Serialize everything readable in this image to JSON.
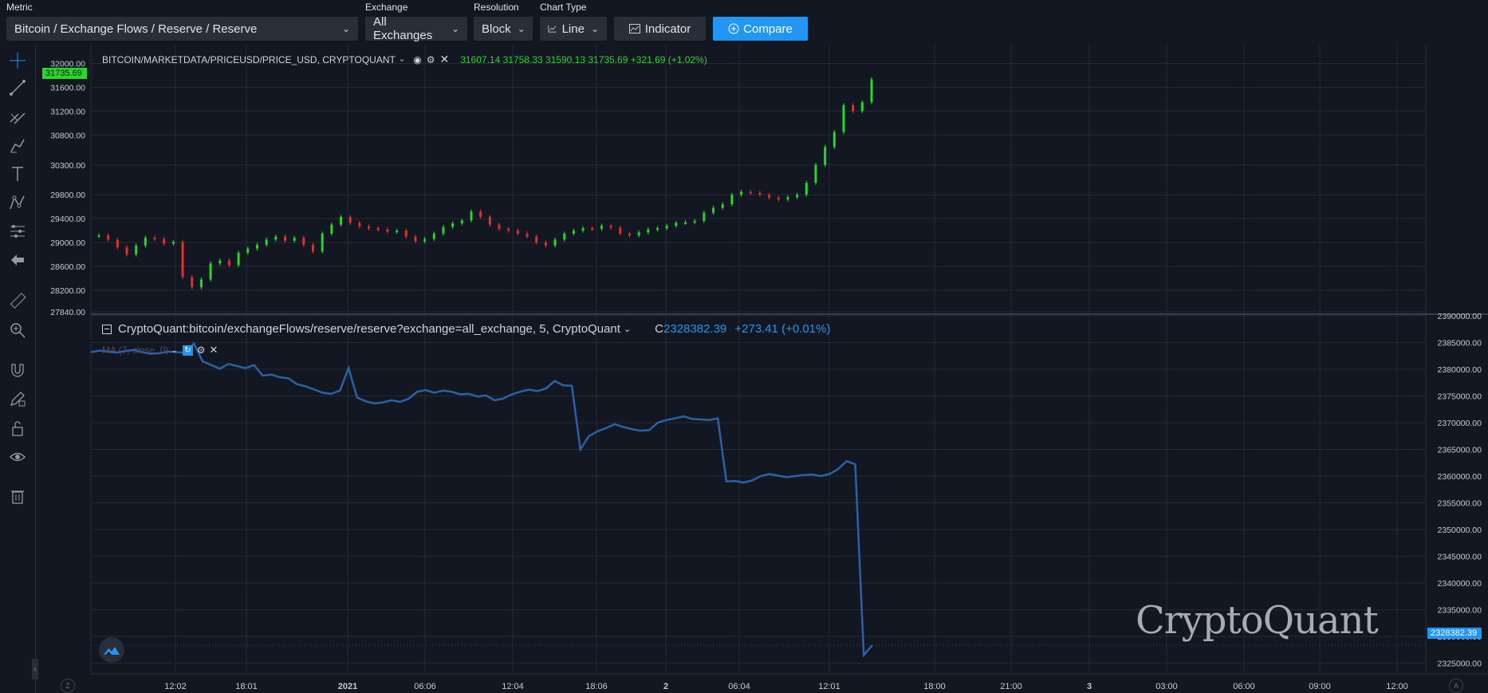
{
  "top": {
    "metric_label": "Metric",
    "metric_value": "Bitcoin / Exchange Flows / Reserve / Reserve",
    "exchange_label": "Exchange",
    "exchange_value": "All Exchanges",
    "resolution_label": "Resolution",
    "resolution_value": "Block",
    "charttype_label": "Chart Type",
    "charttype_value": "Line",
    "indicator_label": "Indicator",
    "compare_label": "Compare"
  },
  "toolbar": {
    "icons": [
      "crosshair-icon",
      "trend-line-icon",
      "fib-icon",
      "brush-icon",
      "text-icon",
      "pattern-icon",
      "measure-icon",
      "back-arrow-icon",
      "ruler-icon",
      "zoom-icon",
      "magnet-icon",
      "lock-draw-icon",
      "lock-icon",
      "eye-icon",
      "trash-icon"
    ]
  },
  "pane1": {
    "symbol": "BITCOIN/MARKETDATA/PRICEUSD/PRICE_USD, CRYPTOQUANT",
    "ohlc": "31607.14  31758.33  31590.13  31735.69  +321.69 (+1.02%)",
    "last_price": "31735.69",
    "y_ticks": [
      "32000.00",
      "31600.00",
      "31200.00",
      "30800.00",
      "30300.00",
      "29800.00",
      "29400.00",
      "29000.00",
      "28600.00",
      "28200.00",
      "27840.00"
    ]
  },
  "pane2": {
    "symbol": "CryptoQuant:bitcoin/exchangeFlows/reserve/reserve?exchange=all_exchange, 5, CryptoQuant",
    "c_label": "C",
    "c_value": "2328382.39",
    "change": "+273.41 (+0.01%)",
    "ma_label": "MA (7, close, 0)",
    "last_value": "2328382.39",
    "y_ticks": [
      "2390000.00",
      "2385000.00",
      "2380000.00",
      "2375000.00",
      "2370000.00",
      "2365000.00",
      "2360000.00",
      "2355000.00",
      "2350000.00",
      "2345000.00",
      "2340000.00",
      "2335000.00",
      "2330000.00",
      "2325000.00"
    ]
  },
  "x_axis": {
    "ticks": [
      "12:02",
      "18:01",
      "2021",
      "06:06",
      "12:04",
      "18:06",
      "2",
      "06:04",
      "12:01",
      "18:00",
      "21:00",
      "3",
      "03:00",
      "06:00",
      "09:00",
      "12:00"
    ],
    "left_button": "Z",
    "right_button": "A"
  },
  "watermark": "CryptoQuant",
  "colors": {
    "background": "#131722",
    "up": "#26d926",
    "down": "#e0322b",
    "reserve_line": "#2962a8",
    "accent": "#2196f3"
  },
  "chart_data": [
    {
      "type": "candlestick",
      "title": "BITCOIN/MARKETDATA/PRICEUSD/PRICE_USD, CRYPTOQUANT",
      "ylim": [
        27840,
        32100
      ],
      "series": [
        {
          "name": "PRICE_USD",
          "values": [
            29120,
            29050,
            28920,
            28800,
            28950,
            29080,
            29060,
            28980,
            29010,
            28420,
            28250,
            28380,
            28650,
            28700,
            28620,
            28830,
            28900,
            28960,
            29050,
            29100,
            29030,
            29080,
            28960,
            28850,
            29150,
            29300,
            29430,
            29330,
            29270,
            29240,
            29220,
            29180,
            29200,
            29100,
            29020,
            29060,
            29150,
            29260,
            29320,
            29370,
            29520,
            29430,
            29300,
            29230,
            29200,
            29150,
            29100,
            29000,
            28950,
            29050,
            29150,
            29200,
            29240,
            29230,
            29280,
            29250,
            29150,
            29120,
            29170,
            29220,
            29240,
            29280,
            29330,
            29340,
            29360,
            29500,
            29580,
            29640,
            29800,
            29850,
            29830,
            29800,
            29750,
            29720,
            29760,
            29800,
            30000,
            30300,
            30600,
            30850,
            31300,
            31200,
            31350,
            31735
          ]
        }
      ]
    },
    {
      "type": "line",
      "title": "CryptoQuant:bitcoin/exchangeFlows/reserve/reserve?exchange=all_exchange, 5, CryptoQuant",
      "ylim": [
        2323000,
        2390000
      ],
      "series": [
        {
          "name": "reserve",
          "values": [
            2383200,
            2383500,
            2383300,
            2383100,
            2383400,
            2383600,
            2383200,
            2382900,
            2383000,
            2383300,
            2383200,
            2383100,
            2384800,
            2381500,
            2380800,
            2380100,
            2381000,
            2380600,
            2380200,
            2380800,
            2378800,
            2379000,
            2378500,
            2378300,
            2377200,
            2376800,
            2376200,
            2375600,
            2375400,
            2376000,
            2380200,
            2374700,
            2374000,
            2373600,
            2373800,
            2374200,
            2373900,
            2374500,
            2375800,
            2376100,
            2375600,
            2376000,
            2375800,
            2375300,
            2375400,
            2374900,
            2375100,
            2374200,
            2374500,
            2375300,
            2375800,
            2376200,
            2375900,
            2376400,
            2377800,
            2377000,
            2376900,
            2365000,
            2367500,
            2368400,
            2369000,
            2369700,
            2369200,
            2368800,
            2368500,
            2368600,
            2370000,
            2370500,
            2370800,
            2371200,
            2370700,
            2370600,
            2370500,
            2370800,
            2359000,
            2359100,
            2358800,
            2359200,
            2360000,
            2360400,
            2360100,
            2359800,
            2360000,
            2360200,
            2360300,
            2360000,
            2360400,
            2361300,
            2362800,
            2362200,
            2326500,
            2328382
          ]
        }
      ]
    }
  ]
}
